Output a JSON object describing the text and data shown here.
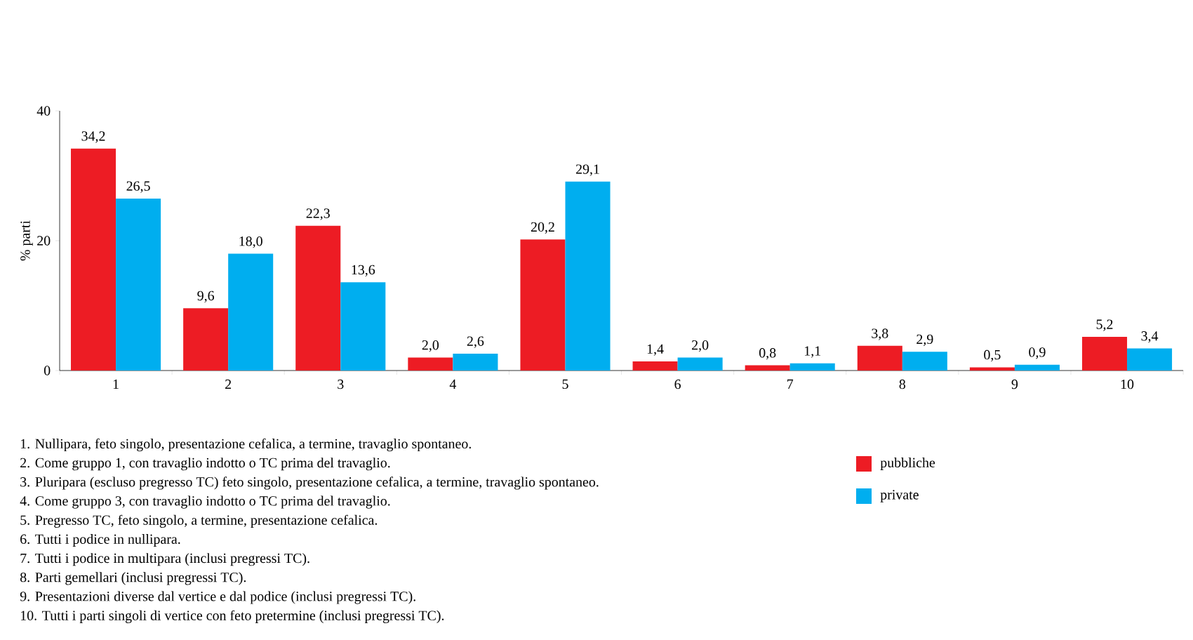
{
  "chart_data": {
    "type": "bar",
    "ylabel": "% parti",
    "categories": [
      "1",
      "2",
      "3",
      "4",
      "5",
      "6",
      "7",
      "8",
      "9",
      "10"
    ],
    "series": [
      {
        "name": "pubbliche",
        "color": "#ed1c24",
        "values": [
          34.2,
          9.6,
          22.3,
          2.0,
          20.2,
          1.4,
          0.8,
          3.8,
          0.5,
          5.2
        ],
        "value_labels": [
          "34,2",
          "9,6",
          "22,3",
          "2,0",
          "20,2",
          "1,4",
          "0,8",
          "3,8",
          "0,5",
          "5,2"
        ]
      },
      {
        "name": "private",
        "color": "#00aeef",
        "values": [
          26.5,
          18.0,
          13.6,
          2.6,
          29.1,
          2.0,
          1.1,
          2.9,
          0.9,
          3.4
        ],
        "value_labels": [
          "26,5",
          "18,0",
          "13,6",
          "2,6",
          "29,1",
          "2,0",
          "1,1",
          "2,9",
          "0,9",
          "3,4"
        ]
      }
    ],
    "ylim": [
      0,
      40
    ],
    "yticks": [
      0,
      20,
      40
    ],
    "grid": false,
    "legend": "bottom right",
    "annotations": [
      "1.  Nullipara, feto singolo, presentazione cefalica, a termine, travaglio spontaneo.",
      "2.  Come gruppo 1, con travaglio indotto o TC prima del travaglio.",
      "3.  Pluripara (escluso pregresso TC) feto singolo, presentazione cefalica, a termine, travaglio spontaneo.",
      "4.  Come gruppo 3, con travaglio indotto o TC prima del travaglio.",
      "5.  Pregresso TC, feto singolo, a termine, presentazione cefalica.",
      "6.  Tutti i podice in nullipara.",
      "7.  Tutti i podice in multipara (inclusi pregressi TC).",
      "8.  Parti gemellari (inclusi pregressi TC).",
      "9.  Presentazioni diverse dal vertice e dal podice (inclusi pregressi TC).",
      "10.  Tutti i parti singoli di vertice con feto pretermine (inclusi pregressi TC)."
    ]
  }
}
